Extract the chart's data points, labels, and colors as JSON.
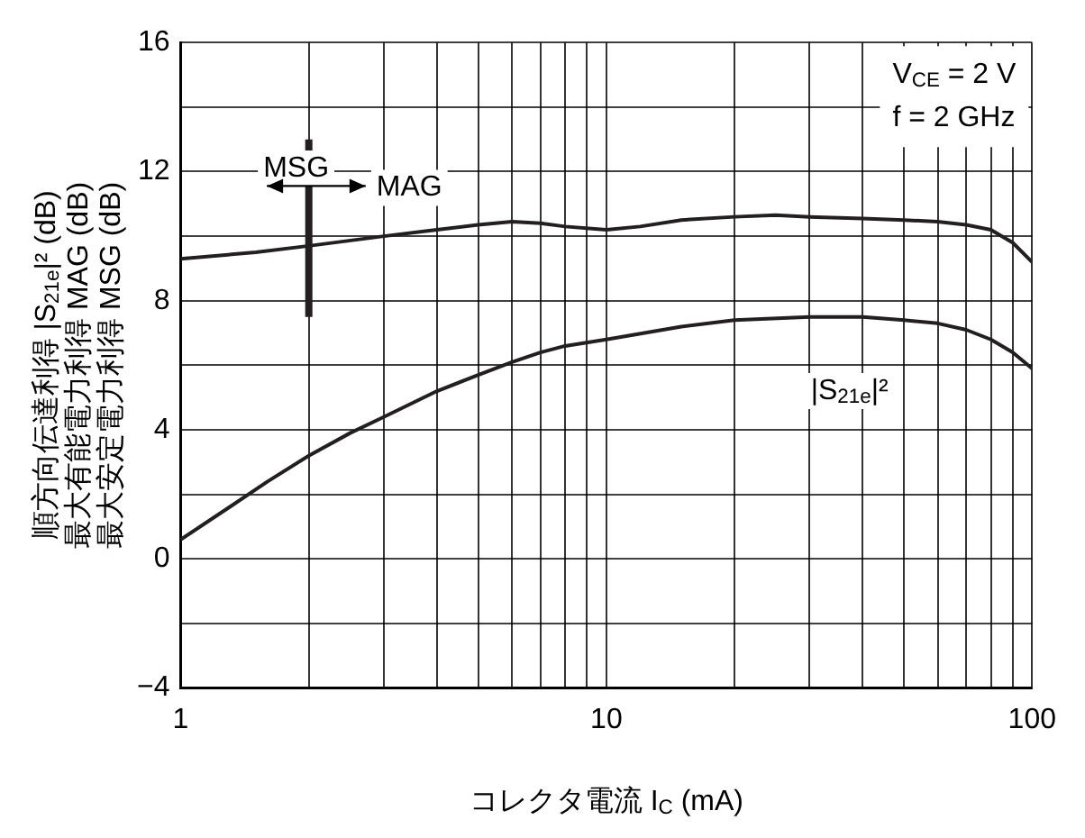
{
  "chart_data": {
    "type": "line",
    "xlabel": "コレクタ電流 I$_{C}$ (mA)",
    "ylabel": "順方向伝達利得 |S$_{21e}$|² (dB)\n最大有能電力利得 MAG (dB)\n最大安定電力利得 MSG (dB)",
    "log": "x",
    "grid": true,
    "legend": false,
    "marker": "none",
    "line_style": "solid",
    "xlim": [
      1,
      100
    ],
    "ylim": [
      -4,
      16
    ],
    "xticks": [
      1,
      {
        "value": 2,
        "label": null
      },
      {
        "value": 3,
        "label": null
      },
      {
        "value": 4,
        "label": null
      },
      {
        "value": 5,
        "label": null
      },
      {
        "value": 6,
        "label": null
      },
      {
        "value": 7,
        "label": null
      },
      {
        "value": 8,
        "label": null
      },
      {
        "value": 9,
        "label": null
      },
      10,
      {
        "value": 20,
        "label": null
      },
      {
        "value": 30,
        "label": null
      },
      {
        "value": 40,
        "label": null
      },
      {
        "value": 50,
        "label": null
      },
      {
        "value": 60,
        "label": null
      },
      {
        "value": 70,
        "label": null
      },
      {
        "value": 80,
        "label": null
      },
      {
        "value": 90,
        "label": null
      },
      100
    ],
    "yticks": [
      {
        "value": -4,
        "label": "−4"
      },
      {
        "value": -2,
        "label": null
      },
      0,
      {
        "value": 2,
        "label": null
      },
      4,
      {
        "value": 6,
        "label": null
      },
      8,
      {
        "value": 10,
        "label": null
      },
      12,
      {
        "value": 14,
        "label": null
      },
      16
    ],
    "series": [
      {
        "color": "#231f20",
        "x": [
          1,
          1.5,
          2,
          3,
          4,
          5,
          6,
          7,
          8,
          10,
          12,
          15,
          20,
          25,
          30,
          40,
          50,
          60,
          70,
          80,
          90,
          100
        ],
        "values": [
          9.3,
          9.5,
          9.7,
          10.0,
          10.2,
          10.35,
          10.45,
          10.4,
          10.3,
          10.2,
          10.3,
          10.5,
          10.6,
          10.65,
          10.6,
          10.55,
          10.5,
          10.45,
          10.35,
          10.2,
          9.8,
          9.2
        ]
      },
      {
        "color": "#231f20",
        "x": [
          1,
          1.3,
          1.6,
          2,
          2.5,
          3,
          4,
          5,
          6,
          7,
          8,
          10,
          15,
          20,
          30,
          40,
          50,
          60,
          70,
          80,
          90,
          100
        ],
        "values": [
          0.6,
          1.6,
          2.4,
          3.2,
          3.9,
          4.4,
          5.2,
          5.7,
          6.1,
          6.4,
          6.6,
          6.8,
          7.2,
          7.4,
          7.5,
          7.5,
          7.4,
          7.3,
          7.1,
          6.8,
          6.4,
          5.9
        ]
      },
      {
        "color": "#231f20",
        "x": [
          2,
          2
        ],
        "values": [
          7.5,
          13
        ]
      }
    ],
    "annotations": [
      "MSG",
      "MAG",
      "|S$_{21e}$|²",
      "V$_{CE}$ = 2 V",
      "f = 2 GHz"
    ]
  }
}
